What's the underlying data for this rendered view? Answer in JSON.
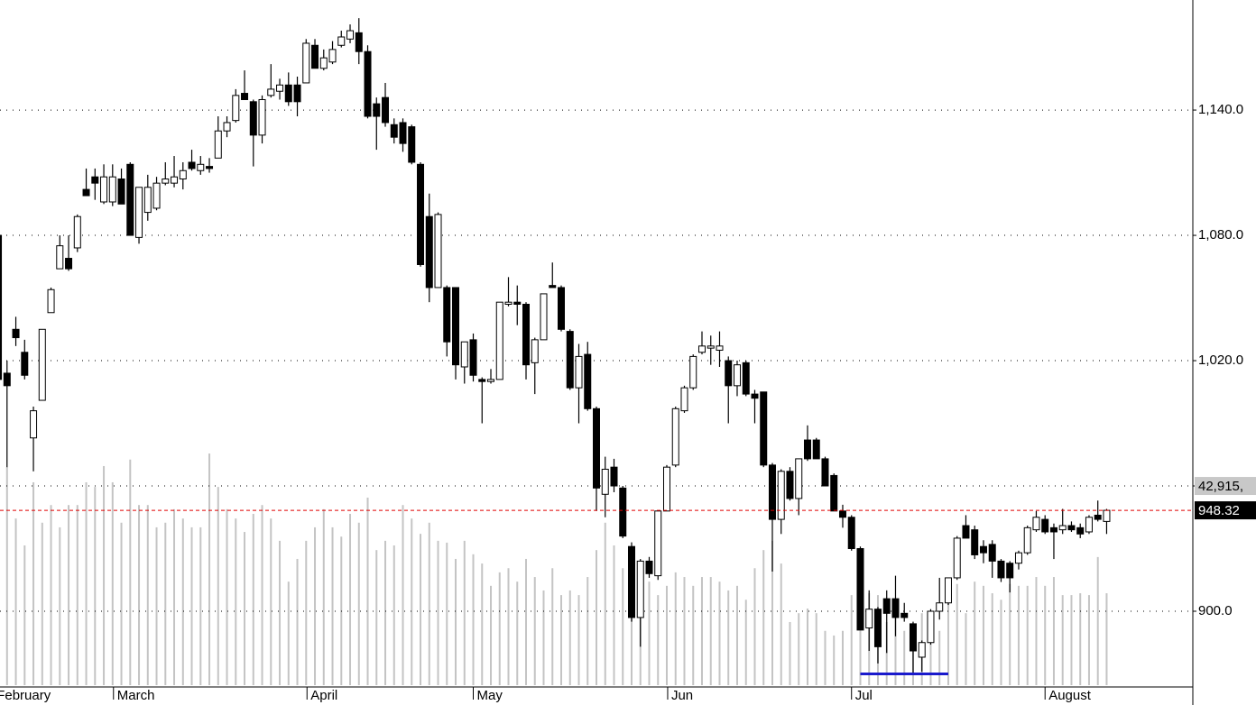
{
  "chart_data": {
    "type": "candlestick",
    "open": [
      1080,
      1014,
      1035,
      1024,
      983,
      1001,
      1043,
      1064,
      1069,
      1074,
      1102,
      1108,
      1096,
      1096,
      1107,
      1114,
      1079,
      1091,
      1093,
      1105,
      1105,
      1107,
      1115,
      1111,
      1113,
      1117,
      1130,
      1135,
      1148,
      1144,
      1128,
      1147,
      1149,
      1152,
      1152,
      1153,
      1171,
      1160,
      1163,
      1171,
      1174,
      1177,
      1168,
      1143,
      1146,
      1133,
      1134,
      1132,
      1114,
      1089,
      1055,
      1055,
      1055,
      1017,
      1030,
      1011,
      1010,
      1011,
      1047,
      1048,
      1047,
      1019,
      1030,
      1056,
      1055,
      1034,
      1007,
      1023,
      997,
      956,
      969,
      959,
      931,
      897,
      924,
      917,
      948,
      970,
      996,
      1007,
      1024,
      1026,
      1025,
      1020,
      1008,
      1019,
      1004,
      1005,
      970,
      944,
      967,
      954,
      982,
      982,
      973,
      965,
      948,
      945,
      930,
      892,
      901,
      906,
      906,
      899,
      894,
      878,
      885,
      900,
      904,
      916,
      941,
      939,
      931,
      932,
      924,
      923,
      923,
      928,
      939,
      944,
      940,
      939,
      941,
      940,
      938,
      946,
      943
    ],
    "high": [
      1081,
      1020,
      1041,
      1030,
      998,
      1035,
      1055,
      1080,
      1080,
      1090,
      1112,
      1112,
      1114,
      1114,
      1112,
      1115,
      1103,
      1109,
      1108,
      1115,
      1118,
      1115,
      1121,
      1118,
      1117,
      1137,
      1137,
      1150,
      1159,
      1145,
      1147,
      1162,
      1155,
      1158,
      1156,
      1174,
      1174,
      1169,
      1173,
      1178,
      1181,
      1184,
      1171,
      1146,
      1153,
      1136,
      1136,
      1133,
      1115,
      1100,
      1091,
      1056,
      1055,
      1029,
      1033,
      1012,
      1016,
      1048,
      1060,
      1056,
      1048,
      1031,
      1052,
      1067,
      1056,
      1035,
      1028,
      1029,
      998,
      974,
      973,
      960,
      933,
      925,
      926,
      948,
      970,
      998,
      1008,
      1023,
      1034,
      1032,
      1034,
      1022,
      1020,
      1020,
      1006,
      1005,
      971,
      968,
      969,
      973,
      989,
      983,
      974,
      966,
      951,
      946,
      931,
      910,
      902,
      910,
      917,
      904,
      895,
      886,
      901,
      916,
      916,
      936,
      946,
      941,
      934,
      934,
      925,
      924,
      929,
      941,
      948,
      946,
      942,
      949,
      943,
      942,
      946,
      953,
      949
    ],
    "low": [
      969,
      969,
      1027,
      1011,
      967,
      1001,
      1043,
      1064,
      1063,
      1072,
      1099,
      1097,
      1095,
      1094,
      1095,
      1080,
      1076,
      1087,
      1092,
      1104,
      1103,
      1102,
      1111,
      1109,
      1110,
      1117,
      1127,
      1134,
      1145,
      1113,
      1124,
      1146,
      1145,
      1142,
      1137,
      1153,
      1160,
      1159,
      1162,
      1170,
      1172,
      1162,
      1136,
      1121,
      1132,
      1124,
      1120,
      1114,
      1065,
      1048,
      1055,
      1022,
      1011,
      1009,
      1010,
      990,
      1009,
      1011,
      1046,
      1037,
      1011,
      1004,
      1030,
      1055,
      1034,
      1006,
      990,
      996,
      948,
      945,
      957,
      935,
      895,
      883,
      916,
      915,
      948,
      969,
      995,
      1006,
      1023,
      1018,
      1017,
      990,
      1003,
      1003,
      990,
      969,
      919,
      937,
      953,
      946,
      972,
      973,
      960,
      948,
      940,
      929,
      891,
      881,
      875,
      880,
      888,
      895,
      870,
      871,
      884,
      896,
      903,
      915,
      935,
      925,
      923,
      916,
      914,
      909,
      920,
      927,
      938,
      937,
      925,
      937,
      938,
      935,
      937,
      943,
      937
    ],
    "close": [
      1011,
      1008,
      1031,
      1013,
      996,
      1035,
      1054,
      1075,
      1064,
      1089,
      1099,
      1105,
      1108,
      1108,
      1095,
      1080,
      1103,
      1103,
      1105,
      1107,
      1108,
      1111,
      1112,
      1114,
      1112,
      1130,
      1134,
      1147,
      1145,
      1128,
      1145,
      1150,
      1152,
      1144,
      1144,
      1172,
      1160,
      1165,
      1169,
      1175,
      1178,
      1168,
      1137,
      1137,
      1134,
      1127,
      1124,
      1115,
      1066,
      1055,
      1090,
      1029,
      1018,
      1029,
      1013,
      1010,
      1011,
      1048,
      1048,
      1047,
      1018,
      1030,
      1052,
      1055,
      1035,
      1007,
      1022,
      997,
      959,
      968,
      960,
      936,
      897,
      924,
      918,
      948,
      969,
      997,
      1007,
      1022,
      1027,
      1027,
      1027,
      1008,
      1018,
      1004,
      1002,
      970,
      944,
      967,
      954,
      973,
      973,
      973,
      960,
      948,
      945,
      930,
      891,
      901,
      883,
      899,
      897,
      897,
      881,
      885,
      900,
      904,
      916,
      935,
      935,
      927,
      928,
      924,
      916,
      916,
      928,
      940,
      945,
      938,
      938,
      941,
      939,
      937,
      945,
      944,
      948.32
    ],
    "up_color": "#ffffff",
    "down_color": "#000000",
    "volume": {
      "values": [
        46600,
        47000,
        35900,
        30100,
        43700,
        35000,
        38800,
        34000,
        38800,
        38800,
        43700,
        42700,
        47200,
        43700,
        35000,
        48600,
        38800,
        38800,
        34000,
        35000,
        37900,
        35900,
        34000,
        34000,
        49900,
        42700,
        37900,
        35900,
        33000,
        36900,
        38800,
        35900,
        31100,
        22300,
        27200,
        31100,
        34000,
        37900,
        34000,
        32000,
        36900,
        35000,
        40400,
        29100,
        31100,
        30100,
        38800,
        35900,
        32600,
        35000,
        31100,
        30700,
        27200,
        31100,
        28200,
        26200,
        21400,
        24300,
        25200,
        22300,
        27200,
        23300,
        20400,
        25200,
        19400,
        20400,
        19400,
        23300,
        29100,
        35000,
        30100,
        25200,
        23300,
        19400,
        22300,
        19400,
        21400,
        24300,
        23300,
        21400,
        23300,
        23300,
        22300,
        20400,
        21400,
        18400,
        25200,
        29100,
        31100,
        26200,
        13600,
        15500,
        16500,
        15500,
        11700,
        10700,
        11700,
        19400,
        23300,
        19800,
        19400,
        13600,
        16500,
        11700,
        8700,
        15500,
        11700,
        11700,
        20400,
        21800,
        15500,
        22300,
        21400,
        19800,
        18400,
        21800,
        21400,
        21400,
        23300,
        21400,
        23300,
        19400,
        19400,
        19800,
        19400,
        27600,
        19800
      ],
      "color": "#c4c4c4",
      "vlim": [
        0,
        147600
      ],
      "marker": {
        "value": 42915,
        "label": "42,915,"
      }
    },
    "last_price": 948.32,
    "last_price_color": "#e00000",
    "hline": {
      "value": 870,
      "x": [
        98,
        108
      ],
      "color": "#1a1acc"
    },
    "ylim": [
      864.6,
      1192.7
    ],
    "yticks": [
      {
        "value": 900,
        "label": "900.0"
      },
      {
        "value": 960,
        "label": null
      },
      {
        "value": 1020,
        "label": "1,020.0"
      },
      {
        "value": 1080,
        "label": "1,080.0"
      },
      {
        "value": 1140,
        "label": "1,140.0"
      }
    ],
    "xlim": [
      0.2,
      135.8
    ],
    "xticks": [
      {
        "value": -0.6,
        "label": "February"
      },
      {
        "value": 13.1,
        "label": "March"
      },
      {
        "value": 35.1,
        "label": "April"
      },
      {
        "value": 54,
        "label": "May"
      },
      {
        "value": 76.1,
        "label": "Jun"
      },
      {
        "value": 97,
        "label": "Jul"
      },
      {
        "value": 119,
        "label": "August"
      }
    ],
    "grid": true
  }
}
